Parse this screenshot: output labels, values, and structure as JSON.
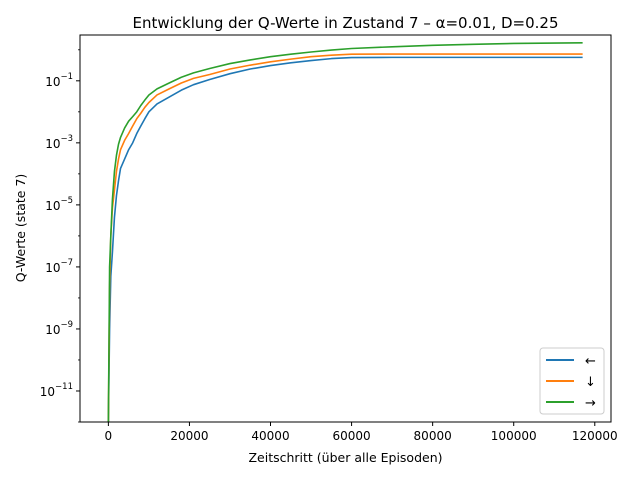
{
  "chart_data": {
    "type": "line",
    "title": "Entwicklung der Q-Werte in Zustand 7 – α=0.01, D=0.25",
    "xlabel": "Zeitschritt (über alle Episoden)",
    "ylabel": "Q-Werte (state 7)",
    "xlim": [
      -7000,
      124000
    ],
    "ylim": [
      1e-12,
      3
    ],
    "yscale": "log",
    "x_ticks": [
      0,
      20000,
      40000,
      60000,
      80000,
      100000,
      120000
    ],
    "x_tick_labels": [
      "0",
      "20000",
      "40000",
      "60000",
      "80000",
      "100000",
      "120000"
    ],
    "y_ticks": [
      1e-11,
      1e-09,
      1e-07,
      1e-05,
      0.001,
      0.1
    ],
    "y_tick_mantissa": "10",
    "y_tick_exponents": [
      "−11",
      "−9",
      "−7",
      "−5",
      "−3",
      "−1"
    ],
    "grid": false,
    "legend_position": "lower-right",
    "series": [
      {
        "name": "←",
        "color": "#1f77b4",
        "x": [
          0,
          300,
          600,
          1000,
          1500,
          2000,
          2500,
          3000,
          4000,
          5000,
          6000,
          7000,
          8000,
          9000,
          10000,
          12000,
          15000,
          18000,
          21000,
          25000,
          30000,
          35000,
          40000,
          45000,
          50000,
          55000,
          60000,
          70000,
          80000,
          90000,
          100000,
          110000,
          117000
        ],
        "values": [
          1e-12,
          1e-09,
          5e-08,
          3e-07,
          4e-06,
          2e-05,
          6e-05,
          0.00015,
          0.0003,
          0.0006,
          0.001,
          0.002,
          0.0035,
          0.006,
          0.01,
          0.018,
          0.03,
          0.05,
          0.075,
          0.11,
          0.17,
          0.24,
          0.31,
          0.38,
          0.45,
          0.52,
          0.56,
          0.57,
          0.57,
          0.57,
          0.57,
          0.57,
          0.57
        ]
      },
      {
        "name": "↓",
        "color": "#ff7f0e",
        "x": [
          0,
          300,
          600,
          1000,
          1500,
          2000,
          2500,
          3000,
          4000,
          5000,
          6000,
          7000,
          8000,
          9000,
          10000,
          12000,
          15000,
          18000,
          21000,
          25000,
          30000,
          35000,
          40000,
          45000,
          50000,
          55000,
          60000,
          70000,
          80000,
          90000,
          100000,
          110000,
          117000
        ],
        "values": [
          1e-12,
          2e-08,
          1e-06,
          8e-06,
          3e-05,
          0.00012,
          0.0003,
          0.0006,
          0.0012,
          0.002,
          0.0035,
          0.006,
          0.009,
          0.014,
          0.02,
          0.035,
          0.055,
          0.085,
          0.12,
          0.16,
          0.24,
          0.32,
          0.41,
          0.5,
          0.6,
          0.67,
          0.72,
          0.73,
          0.73,
          0.73,
          0.73,
          0.73,
          0.73
        ]
      },
      {
        "name": "→",
        "color": "#2ca02c",
        "x": [
          0,
          300,
          600,
          1000,
          1500,
          2000,
          2500,
          3000,
          4000,
          5000,
          6000,
          7000,
          8000,
          9000,
          10000,
          12000,
          15000,
          18000,
          21000,
          25000,
          30000,
          35000,
          40000,
          45000,
          50000,
          55000,
          60000,
          70000,
          80000,
          90000,
          100000,
          110000,
          117000
        ],
        "values": [
          1e-12,
          1e-07,
          1e-06,
          1.5e-05,
          0.00012,
          0.0004,
          0.0009,
          0.0015,
          0.003,
          0.005,
          0.007,
          0.01,
          0.016,
          0.024,
          0.035,
          0.055,
          0.085,
          0.13,
          0.18,
          0.25,
          0.36,
          0.47,
          0.6,
          0.72,
          0.85,
          0.98,
          1.1,
          1.25,
          1.4,
          1.5,
          1.6,
          1.65,
          1.68
        ]
      }
    ]
  }
}
